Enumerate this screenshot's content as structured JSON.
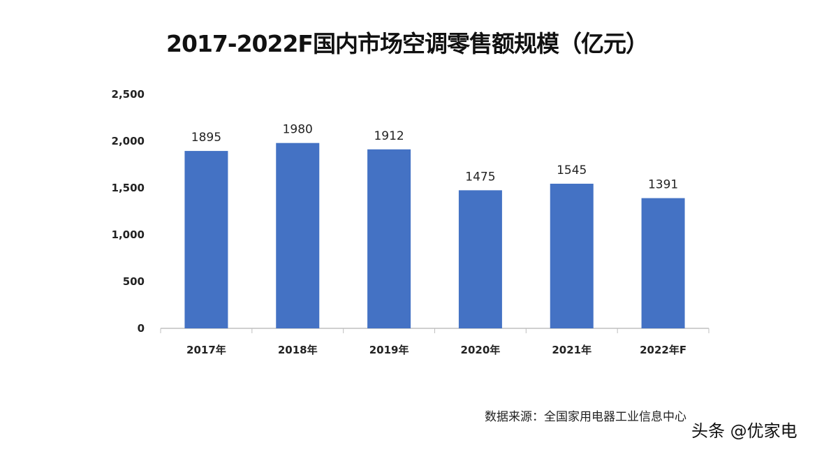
{
  "chart_data": {
    "type": "bar",
    "title": "2017-2022F国内市场空调零售额规模（亿元）",
    "categories": [
      "2017年",
      "2018年",
      "2019年",
      "2020年",
      "2021年",
      "2022年F"
    ],
    "values": [
      1895,
      1980,
      1912,
      1475,
      1545,
      1391
    ],
    "data_labels": [
      "1895",
      "1980",
      "1912",
      "1475",
      "1545",
      "1391"
    ],
    "ylim": [
      0,
      2500
    ],
    "yticks": [
      0,
      500,
      1000,
      1500,
      2000,
      2500
    ],
    "ytick_labels": [
      "0",
      "500",
      "1,000",
      "1,500",
      "2,000",
      "2,500"
    ],
    "grid": false,
    "bar_color": "#4472C4",
    "xlabel": "",
    "ylabel": ""
  },
  "source": "数据来源：全国家用电器工业信息中心",
  "watermark": "头条 @优家电"
}
